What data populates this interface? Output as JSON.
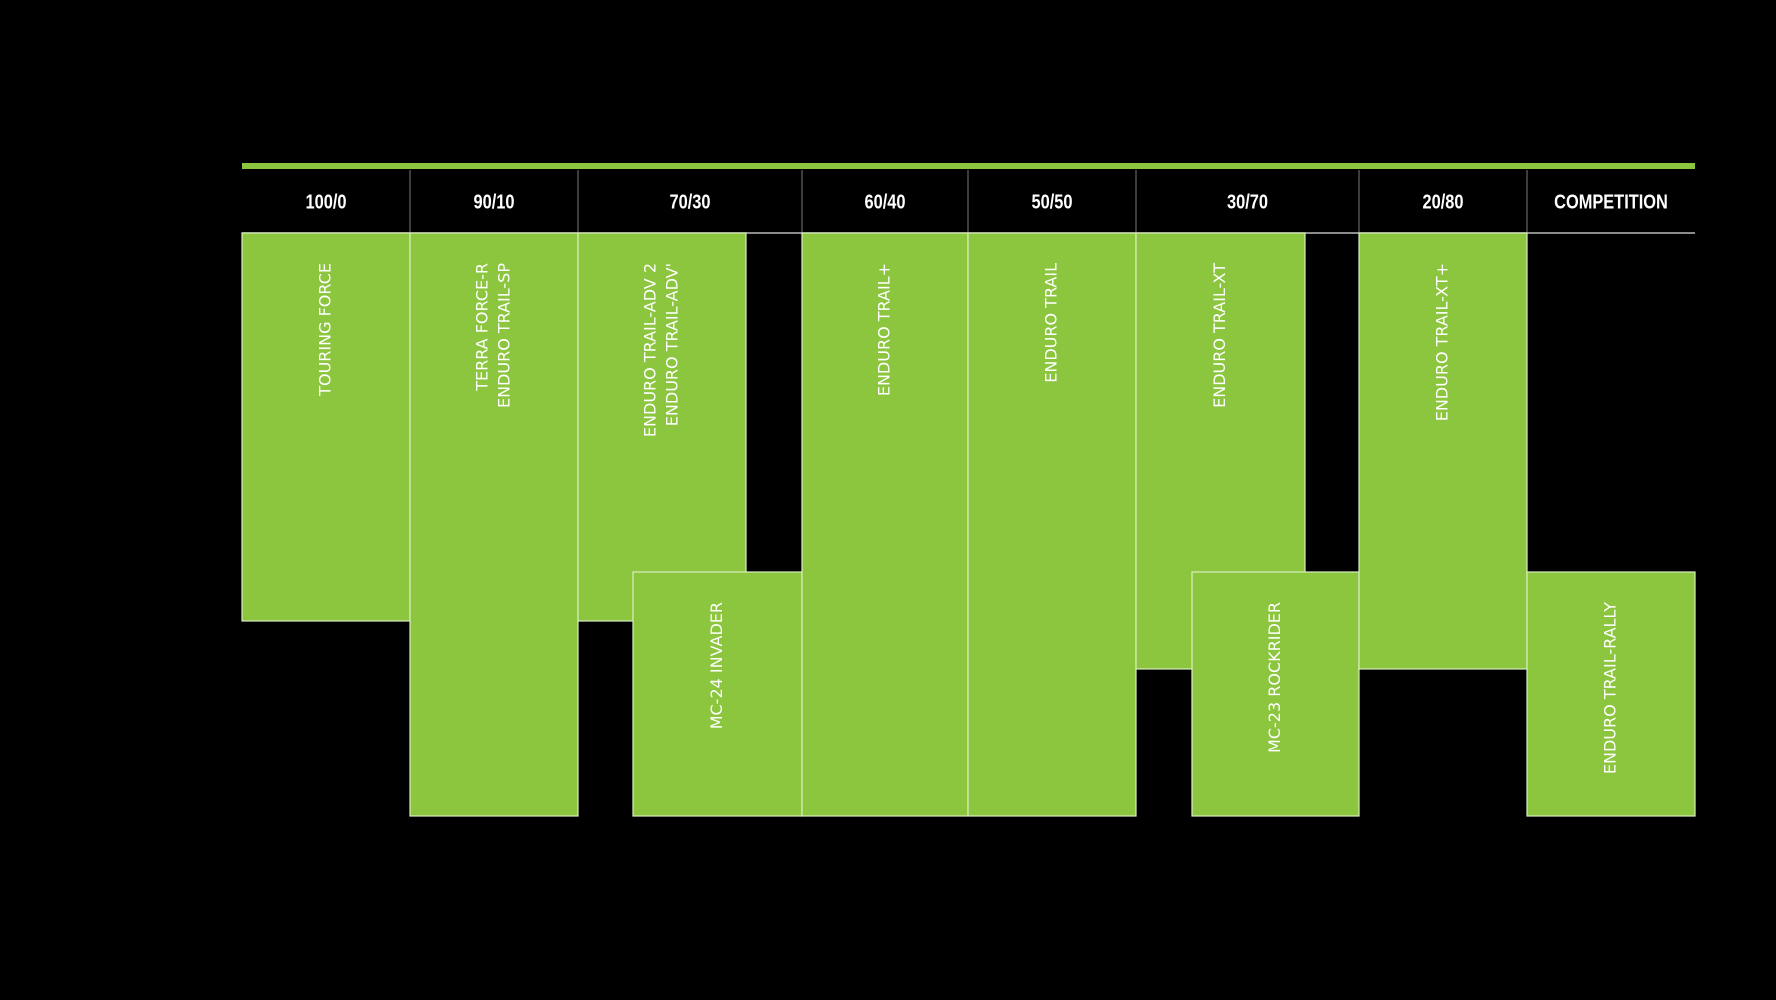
{
  "header": [
    "100/0",
    "90/10",
    "70/30",
    "60/40",
    "50/50",
    "30/70",
    "20/80",
    "COMPETITION"
  ],
  "blocks": [
    {
      "lines": [
        "TOURING FORCE"
      ]
    },
    {
      "lines": [
        "TERRA FORCE-R",
        "ENDURO TRAIL-SP"
      ]
    },
    {
      "lines": [
        "ENDURO TRAIL-ADV 2",
        "ENDURO TRAIL-ADV'"
      ]
    },
    {
      "lines": [
        "MC-24 INVADER"
      ]
    },
    {
      "lines": [
        "ENDURO TRAIL+"
      ]
    },
    {
      "lines": [
        "ENDURO TRAIL"
      ]
    },
    {
      "lines": [
        "ENDURO TRAIL-XT"
      ]
    },
    {
      "lines": [
        "MC-23 ROCKRIDER"
      ]
    },
    {
      "lines": [
        "ENDURO TRAIL-XT+"
      ]
    },
    {
      "lines": [
        "ENDURO TRAIL-RALLY"
      ]
    }
  ]
}
